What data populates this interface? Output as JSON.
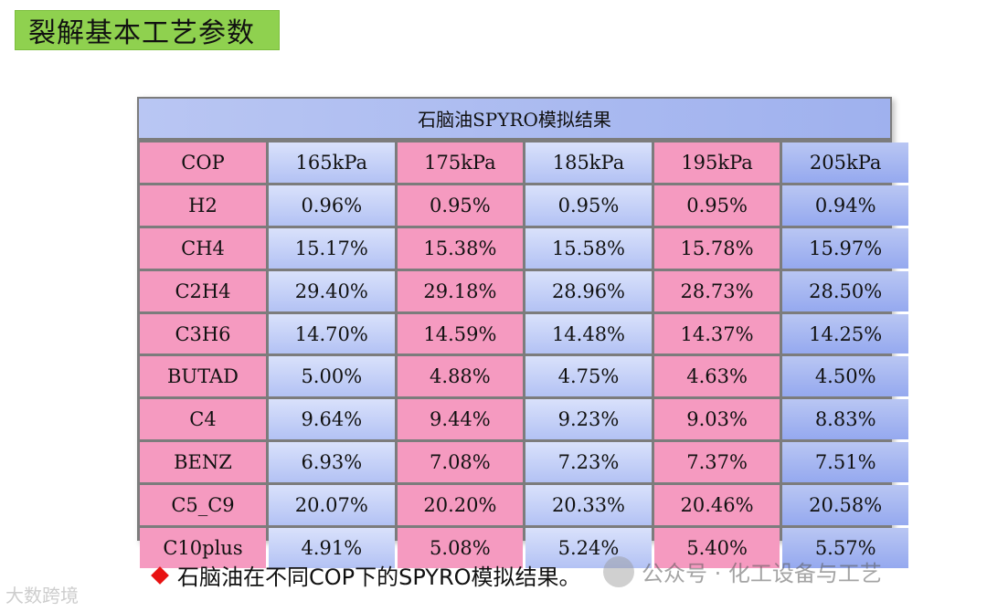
{
  "slide_title": "裂解基本工艺参数",
  "table": {
    "title": "石脑油SPYRO模拟结果",
    "header_row": [
      "COP",
      "165kPa",
      "175kPa",
      "185kPa",
      "195kPa",
      "205kPa"
    ],
    "rows": [
      [
        "H2",
        "0.96%",
        "0.95%",
        "0.95%",
        "0.95%",
        "0.94%"
      ],
      [
        "CH4",
        "15.17%",
        "15.38%",
        "15.58%",
        "15.78%",
        "15.97%"
      ],
      [
        "C2H4",
        "29.40%",
        "29.18%",
        "28.96%",
        "28.73%",
        "28.50%"
      ],
      [
        "C3H6",
        "14.70%",
        "14.59%",
        "14.48%",
        "14.37%",
        "14.25%"
      ],
      [
        "BUTAD",
        "5.00%",
        "4.88%",
        "4.75%",
        "4.63%",
        "4.50%"
      ],
      [
        "C4",
        "9.64%",
        "9.44%",
        "9.23%",
        "9.03%",
        "8.83%"
      ],
      [
        "BENZ",
        "6.93%",
        "7.08%",
        "7.23%",
        "7.37%",
        "7.51%"
      ],
      [
        "C5_C9",
        "20.07%",
        "20.20%",
        "20.33%",
        "20.46%",
        "20.58%"
      ],
      [
        "C10plus",
        "4.91%",
        "5.08%",
        "5.24%",
        "5.40%",
        "5.57%"
      ]
    ]
  },
  "caption": "石脑油在不同COP下的SPYRO模拟结果。",
  "watermark_right": "公众号 · 化工设备与工艺",
  "watermark_left": "大数跨境",
  "colors": {
    "title_green": "#8fd14f",
    "pink": "#f59ac0",
    "blue": "#b3c2f4",
    "bullet_red": "#e81212"
  }
}
